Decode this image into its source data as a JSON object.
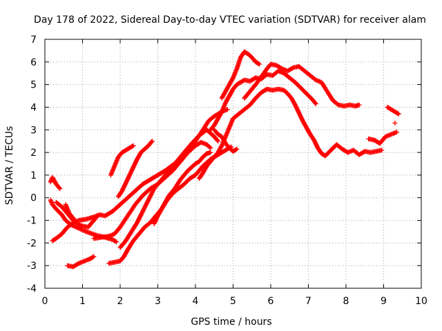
{
  "chart_data": {
    "type": "scatter",
    "title": "Day 178 of 2022, Sidereal Day-to-day VTEC variation (SDTVAR) for receiver alam",
    "xlabel": "GPS time / hours",
    "ylabel": "SDTVAR / TECUs",
    "xlim": [
      0,
      10
    ],
    "ylim": [
      -4,
      7
    ],
    "x_ticks": [
      "0",
      "1",
      "2",
      "3",
      "4",
      "5",
      "6",
      "7",
      "8",
      "9",
      "10"
    ],
    "y_ticks": [
      "-4",
      "-3",
      "-2",
      "-1",
      "0",
      "1",
      "2",
      "3",
      "4",
      "5",
      "6",
      "7"
    ],
    "grid": true,
    "marker": "+",
    "marker_color": "#ff0000",
    "series": [
      {
        "points": [
          [
            0.15,
            0.7
          ],
          [
            0.2,
            0.9
          ],
          [
            0.3,
            0.6
          ],
          [
            0.4,
            0.4
          ]
        ]
      },
      {
        "points": [
          [
            0.15,
            -0.1
          ],
          [
            0.2,
            -0.3
          ],
          [
            0.3,
            -0.5
          ],
          [
            0.45,
            -0.75
          ],
          [
            0.55,
            -1.0
          ],
          [
            0.7,
            -1.2
          ],
          [
            0.9,
            -1.35
          ],
          [
            1.1,
            -1.5
          ],
          [
            1.35,
            -1.65
          ],
          [
            1.6,
            -1.75
          ],
          [
            1.8,
            -1.85
          ],
          [
            1.9,
            -1.95
          ]
        ]
      },
      {
        "points": [
          [
            0.2,
            -1.9
          ],
          [
            0.3,
            -1.8
          ],
          [
            0.45,
            -1.6
          ],
          [
            0.6,
            -1.3
          ],
          [
            0.75,
            -1.1
          ],
          [
            0.9,
            -1.0
          ],
          [
            1.1,
            -0.95
          ],
          [
            1.3,
            -0.85
          ],
          [
            1.45,
            -0.75
          ],
          [
            1.6,
            -0.8
          ],
          [
            1.8,
            -0.6
          ],
          [
            2.0,
            -0.3
          ],
          [
            2.2,
            0.0
          ],
          [
            2.4,
            0.3
          ],
          [
            2.6,
            0.6
          ],
          [
            2.8,
            0.8
          ],
          [
            3.0,
            1.0
          ],
          [
            3.2,
            1.2
          ],
          [
            3.4,
            1.45
          ],
          [
            3.6,
            1.7
          ],
          [
            3.8,
            2.0
          ],
          [
            4.0,
            2.3
          ],
          [
            4.15,
            2.45
          ],
          [
            4.3,
            2.35
          ],
          [
            4.4,
            2.2
          ]
        ]
      },
      {
        "points": [
          [
            0.3,
            -0.2
          ],
          [
            0.45,
            -0.4
          ],
          [
            0.55,
            -0.6
          ],
          [
            0.65,
            -0.8
          ],
          [
            0.75,
            -1.0
          ],
          [
            0.9,
            -1.2
          ],
          [
            1.0,
            -1.25
          ],
          [
            1.15,
            -1.3
          ],
          [
            1.3,
            -1.0
          ],
          [
            1.4,
            -0.8
          ]
        ]
      },
      {
        "points": [
          [
            0.55,
            -0.3
          ],
          [
            0.6,
            -0.5
          ],
          [
            0.65,
            -0.7
          ],
          [
            0.7,
            -0.8
          ],
          [
            0.8,
            -1.0
          ]
        ]
      },
      {
        "points": [
          [
            0.6,
            -3.0
          ],
          [
            0.75,
            -3.05
          ],
          [
            0.9,
            -2.9
          ],
          [
            1.05,
            -2.8
          ],
          [
            1.2,
            -2.7
          ],
          [
            1.3,
            -2.6
          ]
        ]
      },
      {
        "points": [
          [
            1.3,
            -1.8
          ],
          [
            1.5,
            -1.75
          ],
          [
            1.7,
            -1.7
          ],
          [
            1.85,
            -1.6
          ],
          [
            2.0,
            -1.3
          ],
          [
            2.2,
            -0.8
          ],
          [
            2.4,
            -0.3
          ],
          [
            2.6,
            0.1
          ],
          [
            2.8,
            0.4
          ],
          [
            3.0,
            0.6
          ],
          [
            3.2,
            0.9
          ],
          [
            3.4,
            1.2
          ],
          [
            3.6,
            1.6
          ],
          [
            3.8,
            2.0
          ],
          [
            4.0,
            2.5
          ],
          [
            4.2,
            3.0
          ],
          [
            4.35,
            3.4
          ],
          [
            4.5,
            3.6
          ],
          [
            4.7,
            3.8
          ],
          [
            4.85,
            3.9
          ]
        ]
      },
      {
        "points": [
          [
            1.75,
            1.0
          ],
          [
            1.85,
            1.4
          ],
          [
            1.95,
            1.8
          ],
          [
            2.05,
            2.0
          ],
          [
            2.15,
            2.1
          ],
          [
            2.25,
            2.2
          ],
          [
            2.35,
            2.3
          ]
        ]
      },
      {
        "points": [
          [
            1.95,
            0.05
          ],
          [
            2.05,
            0.3
          ],
          [
            2.15,
            0.65
          ],
          [
            2.25,
            1.0
          ],
          [
            2.35,
            1.35
          ],
          [
            2.45,
            1.7
          ],
          [
            2.55,
            2.0
          ],
          [
            2.65,
            2.15
          ],
          [
            2.75,
            2.3
          ],
          [
            2.85,
            2.5
          ]
        ]
      },
      {
        "points": [
          [
            1.7,
            -2.9
          ],
          [
            1.85,
            -2.85
          ],
          [
            2.0,
            -2.8
          ],
          [
            2.1,
            -2.6
          ],
          [
            2.2,
            -2.3
          ],
          [
            2.35,
            -1.9
          ],
          [
            2.5,
            -1.6
          ],
          [
            2.65,
            -1.3
          ],
          [
            2.8,
            -1.1
          ],
          [
            2.95,
            -0.8
          ],
          [
            3.1,
            -0.5
          ],
          [
            3.25,
            -0.1
          ],
          [
            3.4,
            0.2
          ],
          [
            3.55,
            0.4
          ],
          [
            3.7,
            0.6
          ],
          [
            3.85,
            0.85
          ],
          [
            4.0,
            1.0
          ],
          [
            4.2,
            1.4
          ],
          [
            4.4,
            1.7
          ],
          [
            4.6,
            1.9
          ],
          [
            4.8,
            2.1
          ],
          [
            4.95,
            2.25
          ]
        ]
      },
      {
        "points": [
          [
            2.0,
            -2.2
          ],
          [
            2.15,
            -1.9
          ],
          [
            2.3,
            -1.5
          ],
          [
            2.45,
            -1.1
          ],
          [
            2.6,
            -0.6
          ],
          [
            2.75,
            -0.1
          ],
          [
            2.9,
            0.4
          ],
          [
            3.1,
            0.8
          ],
          [
            3.3,
            1.2
          ],
          [
            3.5,
            1.6
          ],
          [
            3.7,
            2.0
          ],
          [
            3.9,
            2.4
          ],
          [
            4.1,
            2.75
          ],
          [
            4.3,
            3.0
          ],
          [
            4.5,
            2.7
          ],
          [
            4.6,
            2.5
          ]
        ]
      },
      {
        "points": [
          [
            2.9,
            -1.15
          ],
          [
            3.0,
            -0.8
          ],
          [
            3.1,
            -0.5
          ],
          [
            3.2,
            -0.2
          ],
          [
            3.3,
            0.1
          ],
          [
            3.45,
            0.4
          ],
          [
            3.6,
            0.8
          ],
          [
            3.8,
            1.2
          ],
          [
            4.0,
            1.5
          ],
          [
            4.1,
            1.6
          ],
          [
            4.2,
            1.8
          ],
          [
            4.3,
            1.95
          ],
          [
            4.4,
            2.0
          ]
        ]
      },
      {
        "points": [
          [
            4.1,
            0.85
          ],
          [
            4.2,
            1.1
          ],
          [
            4.3,
            1.4
          ],
          [
            4.4,
            1.6
          ],
          [
            4.5,
            1.8
          ],
          [
            4.6,
            2.0
          ],
          [
            4.7,
            2.3
          ],
          [
            4.8,
            2.7
          ],
          [
            4.9,
            3.1
          ],
          [
            5.0,
            3.5
          ],
          [
            5.15,
            3.7
          ],
          [
            5.3,
            3.9
          ],
          [
            5.45,
            4.1
          ],
          [
            5.6,
            4.4
          ],
          [
            5.75,
            4.65
          ],
          [
            5.9,
            4.8
          ],
          [
            6.05,
            4.75
          ],
          [
            6.2,
            4.8
          ],
          [
            6.35,
            4.75
          ],
          [
            6.45,
            4.6
          ],
          [
            6.55,
            4.4
          ],
          [
            6.65,
            4.1
          ],
          [
            6.75,
            3.75
          ],
          [
            6.85,
            3.4
          ],
          [
            6.95,
            3.1
          ],
          [
            7.05,
            2.8
          ],
          [
            7.15,
            2.55
          ],
          [
            7.25,
            2.2
          ],
          [
            7.35,
            1.95
          ],
          [
            7.45,
            1.85
          ],
          [
            7.6,
            2.1
          ],
          [
            7.75,
            2.35
          ],
          [
            7.9,
            2.15
          ],
          [
            8.05,
            2.0
          ],
          [
            8.2,
            2.1
          ],
          [
            8.35,
            1.9
          ],
          [
            8.5,
            2.05
          ],
          [
            8.65,
            2.0
          ],
          [
            8.8,
            2.05
          ],
          [
            8.95,
            2.1
          ]
        ]
      },
      {
        "points": [
          [
            4.4,
            3.0
          ],
          [
            4.5,
            3.2
          ],
          [
            4.6,
            3.5
          ],
          [
            4.7,
            3.8
          ],
          [
            4.8,
            4.2
          ],
          [
            4.9,
            4.5
          ],
          [
            5.0,
            4.8
          ],
          [
            5.1,
            5.0
          ],
          [
            5.2,
            5.1
          ],
          [
            5.3,
            5.2
          ],
          [
            5.45,
            5.15
          ],
          [
            5.6,
            5.3
          ],
          [
            5.75,
            5.25
          ],
          [
            5.9,
            5.45
          ],
          [
            6.05,
            5.4
          ],
          [
            6.2,
            5.6
          ],
          [
            6.35,
            5.5
          ],
          [
            6.5,
            5.3
          ],
          [
            6.65,
            5.1
          ],
          [
            6.8,
            4.85
          ],
          [
            6.95,
            4.6
          ],
          [
            7.1,
            4.35
          ],
          [
            7.2,
            4.15
          ]
        ]
      },
      {
        "points": [
          [
            4.5,
            3.0
          ],
          [
            4.6,
            2.8
          ],
          [
            4.7,
            2.7
          ],
          [
            4.8,
            2.4
          ],
          [
            4.9,
            2.2
          ],
          [
            5.0,
            2.05
          ],
          [
            5.1,
            2.15
          ]
        ]
      },
      {
        "points": [
          [
            4.7,
            4.4
          ],
          [
            4.8,
            4.7
          ],
          [
            4.9,
            5.0
          ],
          [
            5.0,
            5.3
          ],
          [
            5.1,
            5.7
          ],
          [
            5.2,
            6.2
          ],
          [
            5.3,
            6.45
          ],
          [
            5.4,
            6.35
          ],
          [
            5.5,
            6.2
          ],
          [
            5.6,
            6.0
          ],
          [
            5.7,
            5.9
          ]
        ]
      },
      {
        "points": [
          [
            5.3,
            4.4
          ],
          [
            5.45,
            4.7
          ],
          [
            5.6,
            5.0
          ],
          [
            5.75,
            5.35
          ],
          [
            5.9,
            5.7
          ],
          [
            6.0,
            5.9
          ],
          [
            6.15,
            5.85
          ],
          [
            6.3,
            5.7
          ],
          [
            6.45,
            5.6
          ],
          [
            6.6,
            5.75
          ],
          [
            6.75,
            5.8
          ],
          [
            6.9,
            5.6
          ],
          [
            7.05,
            5.4
          ],
          [
            7.2,
            5.2
          ],
          [
            7.35,
            5.1
          ],
          [
            7.5,
            4.7
          ],
          [
            7.65,
            4.3
          ],
          [
            7.8,
            4.1
          ],
          [
            7.95,
            4.05
          ],
          [
            8.1,
            4.1
          ],
          [
            8.25,
            4.05
          ],
          [
            8.35,
            4.1
          ]
        ]
      },
      {
        "points": [
          [
            8.6,
            2.6
          ],
          [
            8.75,
            2.55
          ],
          [
            8.9,
            2.4
          ],
          [
            9.05,
            2.7
          ],
          [
            9.2,
            2.8
          ],
          [
            9.35,
            2.9
          ]
        ]
      },
      {
        "points": [
          [
            9.1,
            4.0
          ],
          [
            9.2,
            3.9
          ],
          [
            9.3,
            3.8
          ],
          [
            9.4,
            3.7
          ]
        ]
      },
      {
        "points": [
          [
            9.3,
            3.3
          ]
        ]
      }
    ]
  }
}
